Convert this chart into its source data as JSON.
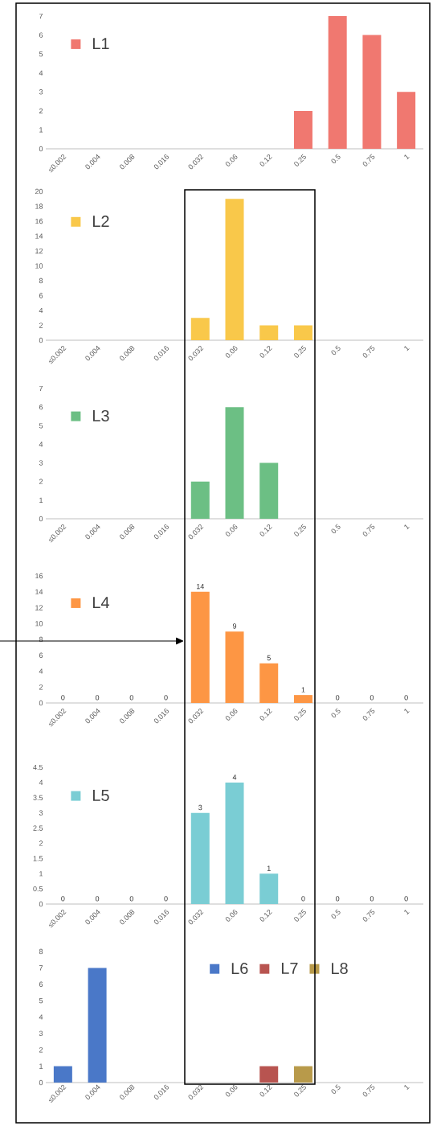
{
  "chart_data": [
    {
      "type": "bar",
      "categories": [
        "≤0.002",
        "0.004",
        "0.008",
        "0.016",
        "0.032",
        "0.06",
        "0.12",
        "0.25",
        "0.5",
        "0.75",
        "1"
      ],
      "series": [
        {
          "name": "L1",
          "color": "#f07870",
          "values": [
            0,
            0,
            0,
            0,
            0,
            0,
            0,
            2,
            7,
            6,
            3
          ]
        }
      ],
      "ylim": [
        0,
        7
      ],
      "yticks": [
        0,
        1,
        2,
        3,
        4,
        5,
        6,
        7
      ],
      "legend": "top left"
    },
    {
      "type": "bar",
      "categories": [
        "≤0.002",
        "0.004",
        "0.008",
        "0.016",
        "0.032",
        "0.06",
        "0.12",
        "0.25",
        "0.5",
        "0.75",
        "1"
      ],
      "series": [
        {
          "name": "L2",
          "color": "#f9c84a",
          "values": [
            0,
            0,
            0,
            0,
            3,
            19,
            2,
            2,
            0,
            0,
            0
          ]
        }
      ],
      "ylim": [
        0,
        20
      ],
      "yticks": [
        0,
        2,
        4,
        6,
        8,
        10,
        12,
        14,
        16,
        18,
        20
      ],
      "legend": "top left"
    },
    {
      "type": "bar",
      "categories": [
        "≤0.002",
        "0.004",
        "0.008",
        "0.016",
        "0.032",
        "0.06",
        "0.12",
        "0.25",
        "0.5",
        "0.75",
        "1"
      ],
      "series": [
        {
          "name": "L3",
          "color": "#6cbf84",
          "values": [
            0,
            0,
            0,
            0,
            2,
            6,
            3,
            0,
            0,
            0,
            0
          ]
        }
      ],
      "ylim": [
        0,
        7
      ],
      "yticks": [
        0,
        1,
        2,
        3,
        4,
        5,
        6,
        7
      ],
      "legend": "top left"
    },
    {
      "type": "bar",
      "categories": [
        "≤0.002",
        "0.004",
        "0.008",
        "0.016",
        "0.032",
        "0.06",
        "0.12",
        "0.25",
        "0.5",
        "0.75",
        "1"
      ],
      "series": [
        {
          "name": "L4",
          "color": "#fd9644",
          "values": [
            0,
            0,
            0,
            0,
            14,
            9,
            5,
            1,
            0,
            0,
            0
          ]
        }
      ],
      "ylim": [
        0,
        16
      ],
      "yticks": [
        0,
        2,
        4,
        6,
        8,
        10,
        12,
        14,
        16
      ],
      "legend": "top left",
      "data_labels": true
    },
    {
      "type": "bar",
      "categories": [
        "≤0.002",
        "0.004",
        "0.008",
        "0.016",
        "0.032",
        "0.06",
        "0.12",
        "0.25",
        "0.5",
        "0.75",
        "1"
      ],
      "series": [
        {
          "name": "L5",
          "color": "#7acdd4",
          "values": [
            0,
            0,
            0,
            0,
            3,
            4,
            1,
            0,
            0,
            0,
            0
          ]
        }
      ],
      "ylim": [
        0,
        4.5
      ],
      "yticks": [
        0,
        0.5,
        1,
        1.5,
        2,
        2.5,
        3,
        3.5,
        4,
        4.5
      ],
      "legend": "top left",
      "data_labels": true
    },
    {
      "type": "bar",
      "categories": [
        "≤0.002",
        "0.004",
        "0.008",
        "0.016",
        "0.032",
        "0.06",
        "0.12",
        "0.25",
        "0.5",
        "0.75",
        "1"
      ],
      "series": [
        {
          "name": "L6",
          "color": "#4a78c8",
          "values": [
            1,
            7,
            0,
            0,
            0,
            0,
            0,
            0,
            0,
            0,
            0
          ]
        },
        {
          "name": "L7",
          "color": "#b85450",
          "values": [
            0,
            0,
            0,
            0,
            0,
            0,
            1,
            0,
            0,
            0,
            0
          ]
        },
        {
          "name": "L8",
          "color": "#b89a4a",
          "values": [
            0,
            0,
            0,
            0,
            0,
            0,
            0,
            1,
            0,
            0,
            0
          ]
        }
      ],
      "ylim": [
        0,
        8
      ],
      "yticks": [
        0,
        1,
        2,
        3,
        4,
        5,
        6,
        7,
        8
      ],
      "legend": "top",
      "stacked": true
    }
  ]
}
